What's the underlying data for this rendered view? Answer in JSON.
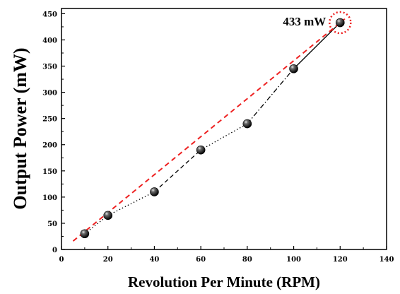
{
  "chart_data": {
    "type": "scatter",
    "xlabel": "Revolution Per Minute (RPM)",
    "ylabel": "Output Power (mW)",
    "xlim": [
      0,
      140
    ],
    "ylim": [
      0,
      460
    ],
    "xticks": [
      0,
      20,
      40,
      60,
      80,
      100,
      120,
      140
    ],
    "yticks": [
      0,
      50,
      100,
      150,
      200,
      250,
      300,
      350,
      400,
      450
    ],
    "grid": false,
    "legend": "none",
    "series": [
      {
        "x": [
          10,
          20,
          40,
          60,
          80,
          100,
          120
        ],
        "y": [
          30,
          65,
          110,
          190,
          240,
          345,
          433
        ],
        "marker": "sphere",
        "color": "#000000",
        "line_styles": [
          "dotted",
          "dotted",
          "dashed",
          "dotted",
          "dash-dot",
          "solid"
        ]
      }
    ],
    "trend_line": {
      "x": [
        5,
        122
      ],
      "y": [
        16,
        440
      ],
      "style": "dashed",
      "color": "#ee2222"
    },
    "annotations": [
      {
        "text": "433 mW",
        "x": 120,
        "y": 433,
        "highlight": "dotted-circle",
        "highlight_color": "#ee2222"
      }
    ]
  }
}
